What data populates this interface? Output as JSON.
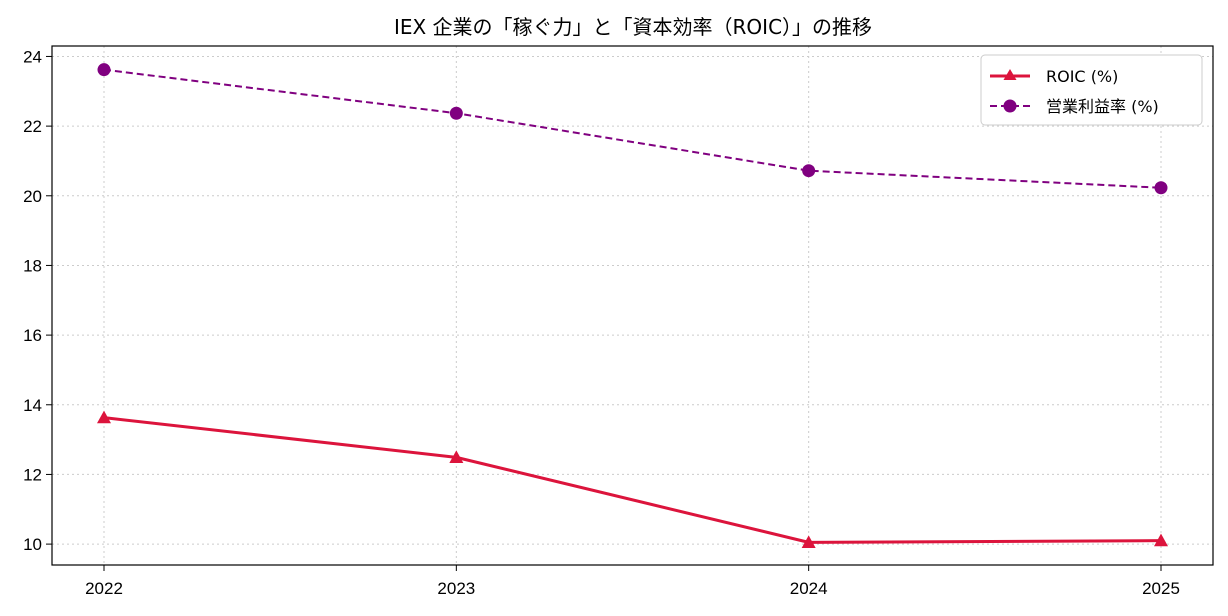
{
  "chart_data": {
    "type": "line",
    "title": "IEX 企業の「稼ぐ力」と「資本効率（ROIC）」の推移",
    "xlabel": "",
    "ylabel": "",
    "x": [
      "2022",
      "2023",
      "2024",
      "2025"
    ],
    "ylim": [
      9.4,
      24.3
    ],
    "yticks": [
      10,
      12,
      14,
      16,
      18,
      20,
      22,
      24
    ],
    "grid": true,
    "legend_position": "top-right",
    "series": [
      {
        "name": "ROIC (%)",
        "values": [
          13.63,
          12.49,
          10.05,
          10.1
        ],
        "color": "#DC143C",
        "linestyle": "solid",
        "marker": "triangle"
      },
      {
        "name": "営業利益率 (%)",
        "values": [
          23.62,
          22.37,
          20.72,
          20.23
        ],
        "color": "#800080",
        "linestyle": "dashed",
        "marker": "circle"
      }
    ]
  }
}
